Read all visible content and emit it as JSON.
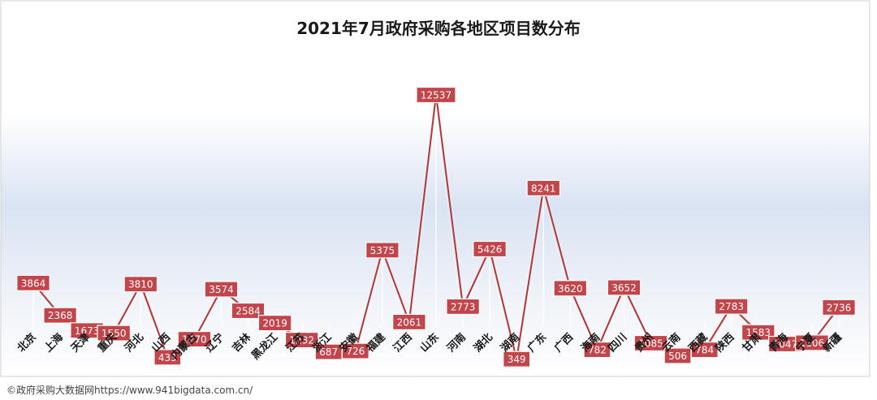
{
  "chart_data": {
    "type": "line",
    "title": "2021年7月政府采购各地区项目数分布",
    "xlabel": "",
    "ylabel": "",
    "ylim": [
      0,
      13500
    ],
    "grid": false,
    "legend": "none",
    "colors": {
      "line": "#b23a3f",
      "label_bg": "#c0464b",
      "label_text": "#ffffff"
    },
    "categories": [
      "北京",
      "上海",
      "天津",
      "重庆",
      "河北",
      "山西",
      "内蒙古",
      "辽宁",
      "吉林",
      "黑龙江",
      "江苏",
      "浙江",
      "安徽",
      "福建",
      "江西",
      "山东",
      "河南",
      "湖北",
      "湖南",
      "广东",
      "广西",
      "海南",
      "四川",
      "贵州",
      "云南",
      "西藏",
      "陕西",
      "甘肃",
      "青海",
      "宁夏",
      "新疆"
    ],
    "values": [
      3864,
      2368,
      1673,
      1550,
      3810,
      433,
      1270,
      3574,
      2584,
      2019,
      1232,
      687,
      726,
      5375,
      2061,
      12537,
      2773,
      5426,
      349,
      8241,
      3620,
      782,
      3652,
      1085,
      506,
      784,
      2783,
      1583,
      1047,
      1106,
      2736
    ]
  },
  "footer": {
    "source": "©政府采购大数据网https://www.941bigdata.com.cn/"
  }
}
